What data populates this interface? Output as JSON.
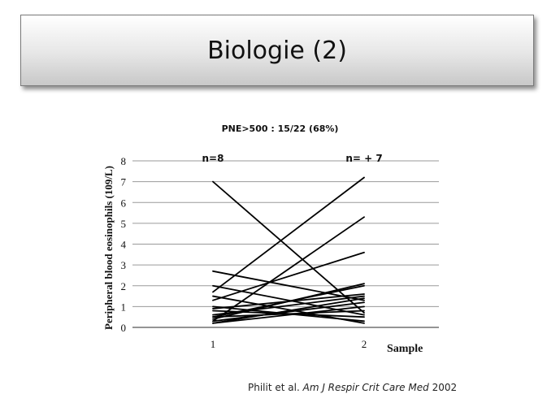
{
  "slide": {
    "title": "Biologie (2)",
    "subtitle": "PNE>500 : 15/22 (68%)",
    "citation": {
      "authors": "Philit et al.",
      "journal": "Am J Respir Crit Care Med",
      "year": "2002"
    }
  },
  "chart_data": {
    "type": "line",
    "ylabel": "Peripheral blood eosinophils (109/L)",
    "xlabel": "Sample",
    "x": [
      1,
      2
    ],
    "x_tick_labels": [
      "1",
      "2"
    ],
    "ylim": [
      0,
      8
    ],
    "yticks": [
      0,
      1,
      2,
      3,
      4,
      5,
      6,
      7,
      8
    ],
    "grid": true,
    "annotations": [
      {
        "text": "n=8",
        "x": 1
      },
      {
        "text": "n= + 7",
        "x": 2
      }
    ],
    "series": [
      {
        "values": [
          7.0,
          0.7
        ]
      },
      {
        "values": [
          1.7,
          7.2
        ]
      },
      {
        "values": [
          0.3,
          5.3
        ]
      },
      {
        "values": [
          1.3,
          3.6
        ]
      },
      {
        "values": [
          2.7,
          1.3
        ]
      },
      {
        "values": [
          2.0,
          0.6
        ]
      },
      {
        "values": [
          1.5,
          0.2
        ]
      },
      {
        "values": [
          0.5,
          2.0
        ]
      },
      {
        "values": [
          0.4,
          2.1
        ]
      },
      {
        "values": [
          0.9,
          1.6
        ]
      },
      {
        "values": [
          0.6,
          1.5
        ]
      },
      {
        "values": [
          0.3,
          1.2
        ]
      },
      {
        "values": [
          0.2,
          1.0
        ]
      },
      {
        "values": [
          0.8,
          0.5
        ]
      },
      {
        "values": [
          0.5,
          0.8
        ]
      },
      {
        "values": [
          0.2,
          1.4
        ]
      },
      {
        "values": [
          1.0,
          0.3
        ]
      }
    ]
  }
}
